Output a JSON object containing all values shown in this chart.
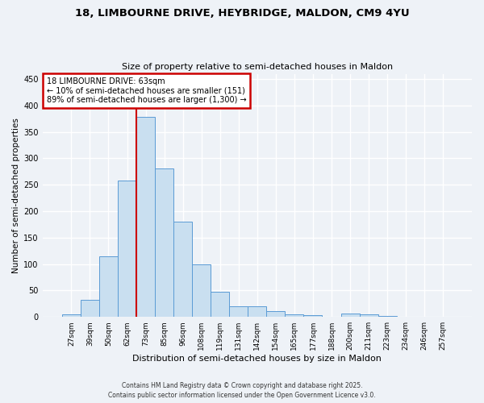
{
  "title_line1": "18, LIMBOURNE DRIVE, HEYBRIDGE, MALDON, CM9 4YU",
  "title_line2": "Size of property relative to semi-detached houses in Maldon",
  "xlabel": "Distribution of semi-detached houses by size in Maldon",
  "ylabel": "Number of semi-detached properties",
  "categories": [
    "27sqm",
    "39sqm",
    "50sqm",
    "62sqm",
    "73sqm",
    "85sqm",
    "96sqm",
    "108sqm",
    "119sqm",
    "131sqm",
    "142sqm",
    "154sqm",
    "165sqm",
    "177sqm",
    "188sqm",
    "200sqm",
    "211sqm",
    "223sqm",
    "234sqm",
    "246sqm",
    "257sqm"
  ],
  "bar_heights": [
    5,
    33,
    114,
    258,
    378,
    281,
    180,
    100,
    47,
    20,
    20,
    11,
    5,
    3,
    0,
    6,
    5,
    2,
    0,
    1,
    0
  ],
  "bar_color": "#c9dff0",
  "bar_edge_color": "#5b9bd5",
  "property_line_index": 3,
  "annotation_title": "18 LIMBOURNE DRIVE: 63sqm",
  "annotation_line1": "← 10% of semi-detached houses are smaller (151)",
  "annotation_line2": "89% of semi-detached houses are larger (1,300) →",
  "annotation_box_color": "#ffffff",
  "annotation_box_edge_color": "#cc0000",
  "property_line_color": "#cc0000",
  "ylim": [
    0,
    460
  ],
  "yticks": [
    0,
    50,
    100,
    150,
    200,
    250,
    300,
    350,
    400,
    450
  ],
  "background_color": "#eef2f7",
  "grid_color": "#ffffff",
  "footer_line1": "Contains HM Land Registry data © Crown copyright and database right 2025.",
  "footer_line2": "Contains public sector information licensed under the Open Government Licence v3.0."
}
